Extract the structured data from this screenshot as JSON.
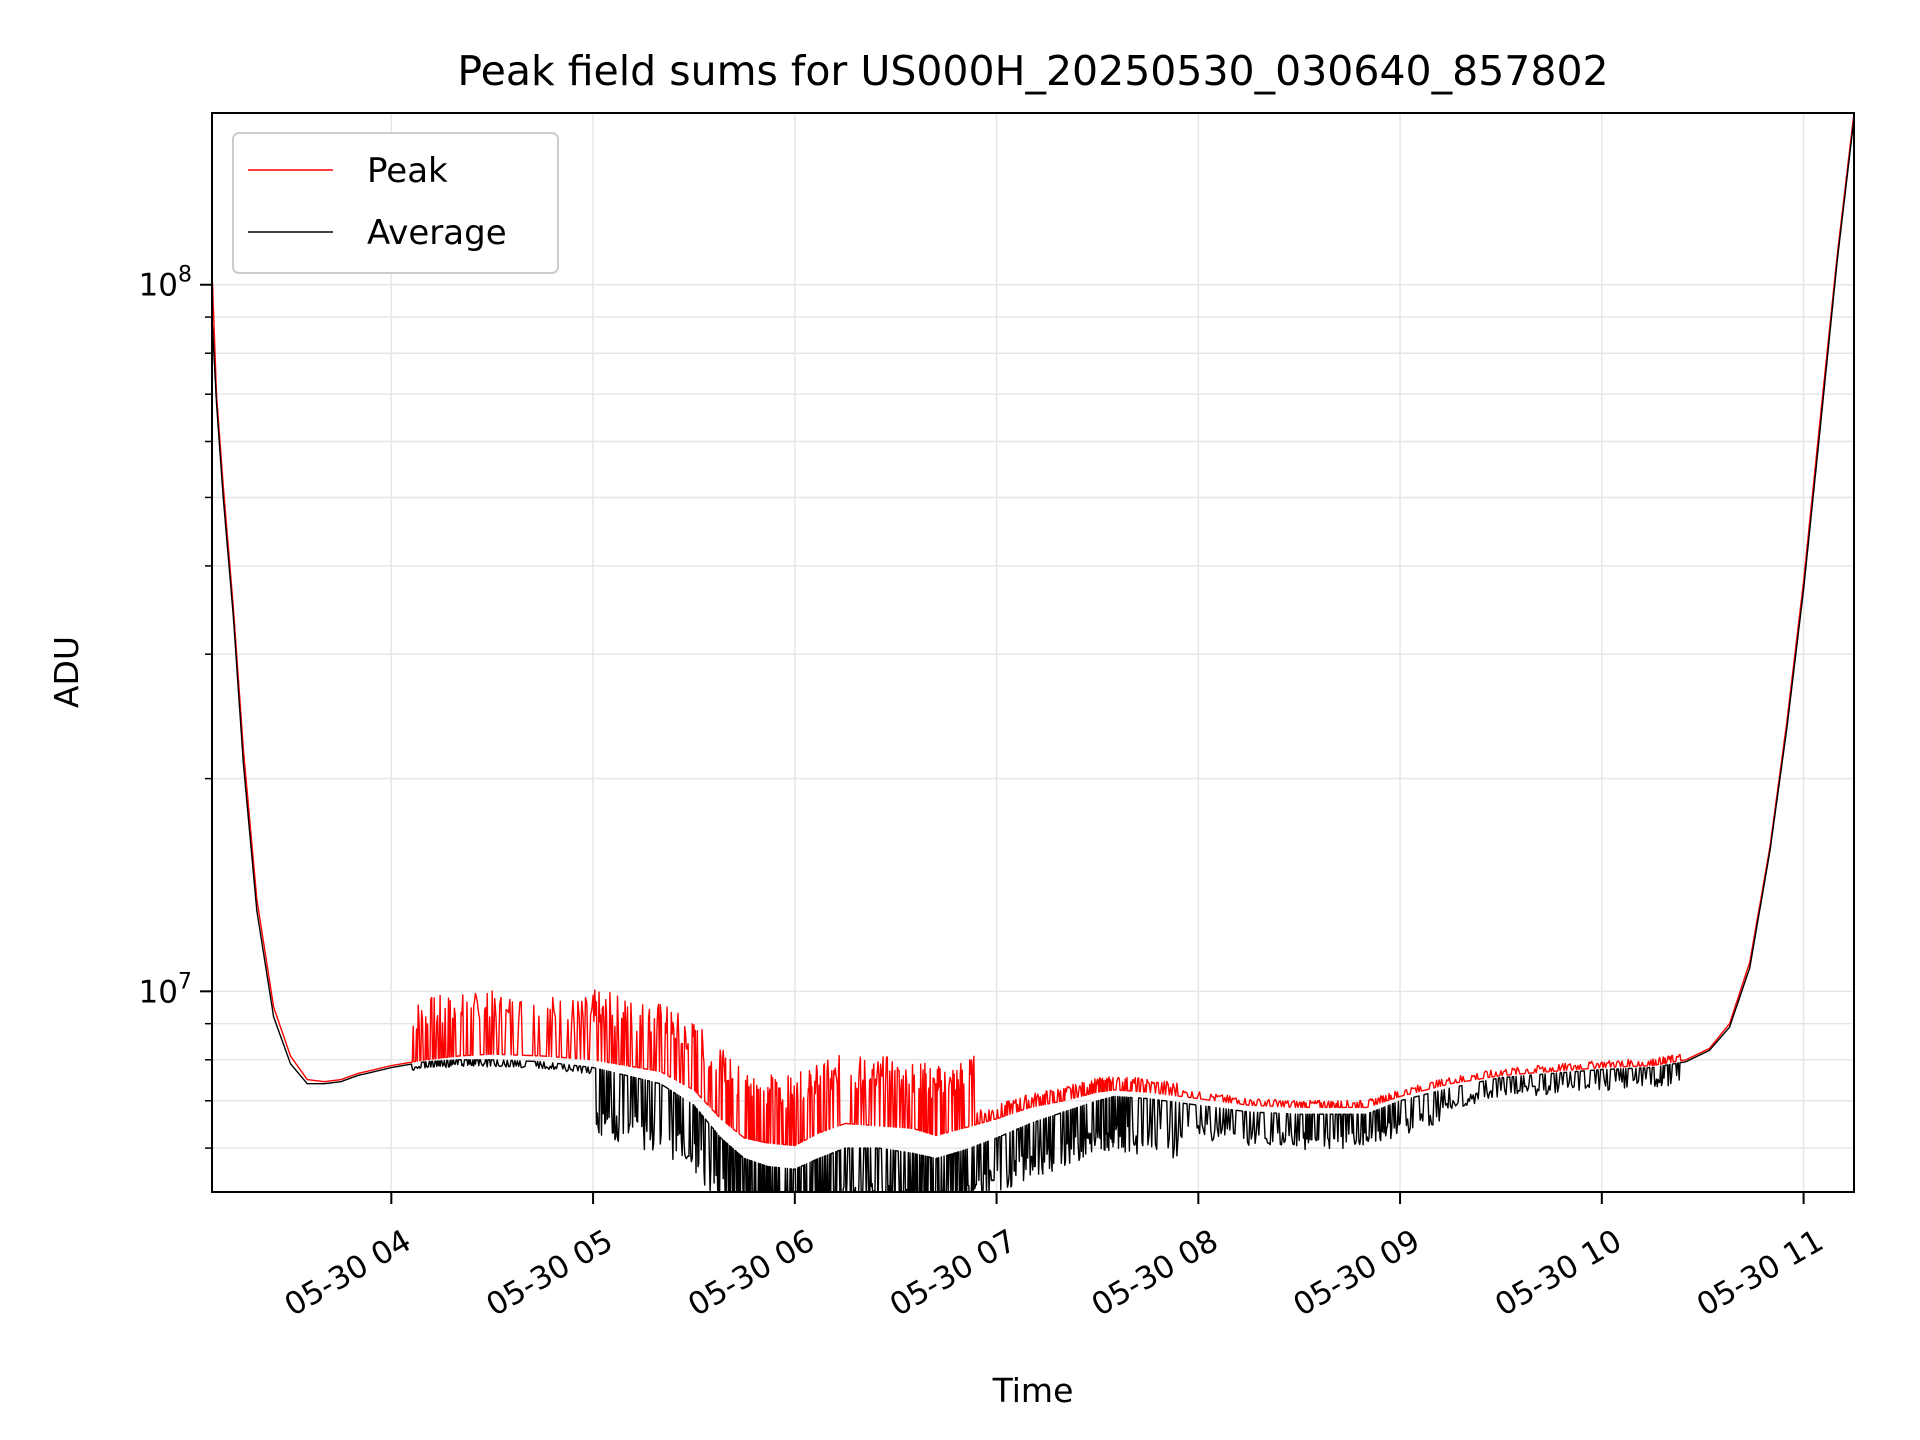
{
  "chart_data": {
    "type": "line",
    "title": "Peak field sums for US000H_20250530_030640_857802",
    "xlabel": "Time",
    "ylabel": "ADU",
    "yscale": "log",
    "xlim": [
      "2025-05-30T03:06:40",
      "2025-05-30T11:15:00"
    ],
    "ylim": [
      5200000,
      175000000
    ],
    "grid": "both-major-minor",
    "legend_position": "top-left",
    "x_tick_labels": [
      "05-30 04",
      "05-30 05",
      "05-30 06",
      "05-30 07",
      "05-30 08",
      "05-30 09",
      "05-30 10",
      "05-30 11"
    ],
    "x_tick_values": [
      "2025-05-30T04:00",
      "2025-05-30T05:00",
      "2025-05-30T06:00",
      "2025-05-30T07:00",
      "2025-05-30T08:00",
      "2025-05-30T09:00",
      "2025-05-30T10:00",
      "2025-05-30T11:00"
    ],
    "y_tick_labels": [
      {
        "value": 10000000,
        "base": "10",
        "exp": "7"
      },
      {
        "value": 100000000,
        "base": "10",
        "exp": "8"
      }
    ],
    "series": [
      {
        "name": "Peak",
        "color": "#ff0000",
        "x": [
          "2025-05-30T03:06:40",
          "2025-05-30T03:08",
          "2025-05-30T03:10",
          "2025-05-30T03:13",
          "2025-05-30T03:16",
          "2025-05-30T03:20",
          "2025-05-30T03:25",
          "2025-05-30T03:30",
          "2025-05-30T03:35",
          "2025-05-30T03:40",
          "2025-05-30T03:45",
          "2025-05-30T03:50",
          "2025-05-30T04:00",
          "2025-05-30T04:10",
          "2025-05-30T04:20",
          "2025-05-30T04:30",
          "2025-05-30T04:45",
          "2025-05-30T05:00",
          "2025-05-30T05:10",
          "2025-05-30T05:20",
          "2025-05-30T05:30",
          "2025-05-30T05:38",
          "2025-05-30T05:45",
          "2025-05-30T05:52",
          "2025-05-30T06:00",
          "2025-05-30T06:07",
          "2025-05-30T06:15",
          "2025-05-30T06:25",
          "2025-05-30T06:35",
          "2025-05-30T06:42",
          "2025-05-30T06:50",
          "2025-05-30T07:00",
          "2025-05-30T07:10",
          "2025-05-30T07:20",
          "2025-05-30T07:30",
          "2025-05-30T07:35",
          "2025-05-30T07:45",
          "2025-05-30T08:00",
          "2025-05-30T08:15",
          "2025-05-30T08:30",
          "2025-05-30T08:40",
          "2025-05-30T08:50",
          "2025-05-30T09:00",
          "2025-05-30T09:15",
          "2025-05-30T09:30",
          "2025-05-30T09:45",
          "2025-05-30T10:00",
          "2025-05-30T10:15",
          "2025-05-30T10:25",
          "2025-05-30T10:32",
          "2025-05-30T10:38",
          "2025-05-30T10:44",
          "2025-05-30T10:50",
          "2025-05-30T10:55",
          "2025-05-30T11:00",
          "2025-05-30T11:05",
          "2025-05-30T11:10",
          "2025-05-30T11:15"
        ],
        "y": [
          105000000,
          70000000,
          52000000,
          35000000,
          22000000,
          13500000,
          9500000,
          8100000,
          7500000,
          7450000,
          7500000,
          7650000,
          7850000,
          8000000,
          8100000,
          8150000,
          8100000,
          8000000,
          7850000,
          7700000,
          7250000,
          6600000,
          6200000,
          6100000,
          6050000,
          6300000,
          6500000,
          6450000,
          6400000,
          6250000,
          6400000,
          6600000,
          6850000,
          7000000,
          7200000,
          7250000,
          7200000,
          7050000,
          6900000,
          6850000,
          6850000,
          6850000,
          7100000,
          7400000,
          7600000,
          7700000,
          7800000,
          7850000,
          8000000,
          8300000,
          9000000,
          11000000,
          16000000,
          24000000,
          38000000,
          65000000,
          110000000,
          175000000
        ]
      },
      {
        "name": "Average",
        "color": "#000000",
        "x": [
          "2025-05-30T03:06:40",
          "2025-05-30T03:08",
          "2025-05-30T03:10",
          "2025-05-30T03:13",
          "2025-05-30T03:16",
          "2025-05-30T03:20",
          "2025-05-30T03:25",
          "2025-05-30T03:30",
          "2025-05-30T03:35",
          "2025-05-30T03:40",
          "2025-05-30T03:45",
          "2025-05-30T03:50",
          "2025-05-30T04:00",
          "2025-05-30T04:10",
          "2025-05-30T04:20",
          "2025-05-30T04:30",
          "2025-05-30T04:45",
          "2025-05-30T05:00",
          "2025-05-30T05:10",
          "2025-05-30T05:20",
          "2025-05-30T05:30",
          "2025-05-30T05:38",
          "2025-05-30T05:45",
          "2025-05-30T05:52",
          "2025-05-30T06:00",
          "2025-05-30T06:07",
          "2025-05-30T06:15",
          "2025-05-30T06:25",
          "2025-05-30T06:35",
          "2025-05-30T06:42",
          "2025-05-30T06:50",
          "2025-05-30T07:00",
          "2025-05-30T07:10",
          "2025-05-30T07:20",
          "2025-05-30T07:30",
          "2025-05-30T07:35",
          "2025-05-30T07:45",
          "2025-05-30T08:00",
          "2025-05-30T08:15",
          "2025-05-30T08:30",
          "2025-05-30T08:40",
          "2025-05-30T08:50",
          "2025-05-30T09:00",
          "2025-05-30T09:15",
          "2025-05-30T09:30",
          "2025-05-30T09:45",
          "2025-05-30T10:00",
          "2025-05-30T10:15",
          "2025-05-30T10:25",
          "2025-05-30T10:32",
          "2025-05-30T10:38",
          "2025-05-30T10:44",
          "2025-05-30T10:50",
          "2025-05-30T10:55",
          "2025-05-30T11:00",
          "2025-05-30T11:05",
          "2025-05-30T11:10",
          "2025-05-30T11:15"
        ],
        "y": [
          90000000,
          68000000,
          50000000,
          34000000,
          21000000,
          13000000,
          9200000,
          7900000,
          7400000,
          7400000,
          7450000,
          7600000,
          7800000,
          7950000,
          8000000,
          8000000,
          7950000,
          7800000,
          7600000,
          7400000,
          6900000,
          6200000,
          5800000,
          5650000,
          5600000,
          5800000,
          6000000,
          6000000,
          5900000,
          5800000,
          5950000,
          6200000,
          6500000,
          6750000,
          7000000,
          7100000,
          7050000,
          6900000,
          6750000,
          6700000,
          6700000,
          6700000,
          7000000,
          7300000,
          7550000,
          7650000,
          7750000,
          7800000,
          7950000,
          8250000,
          8900000,
          10800000,
          15800000,
          23500000,
          37000000,
          63000000,
          108000000,
          172000000
        ]
      }
    ]
  }
}
